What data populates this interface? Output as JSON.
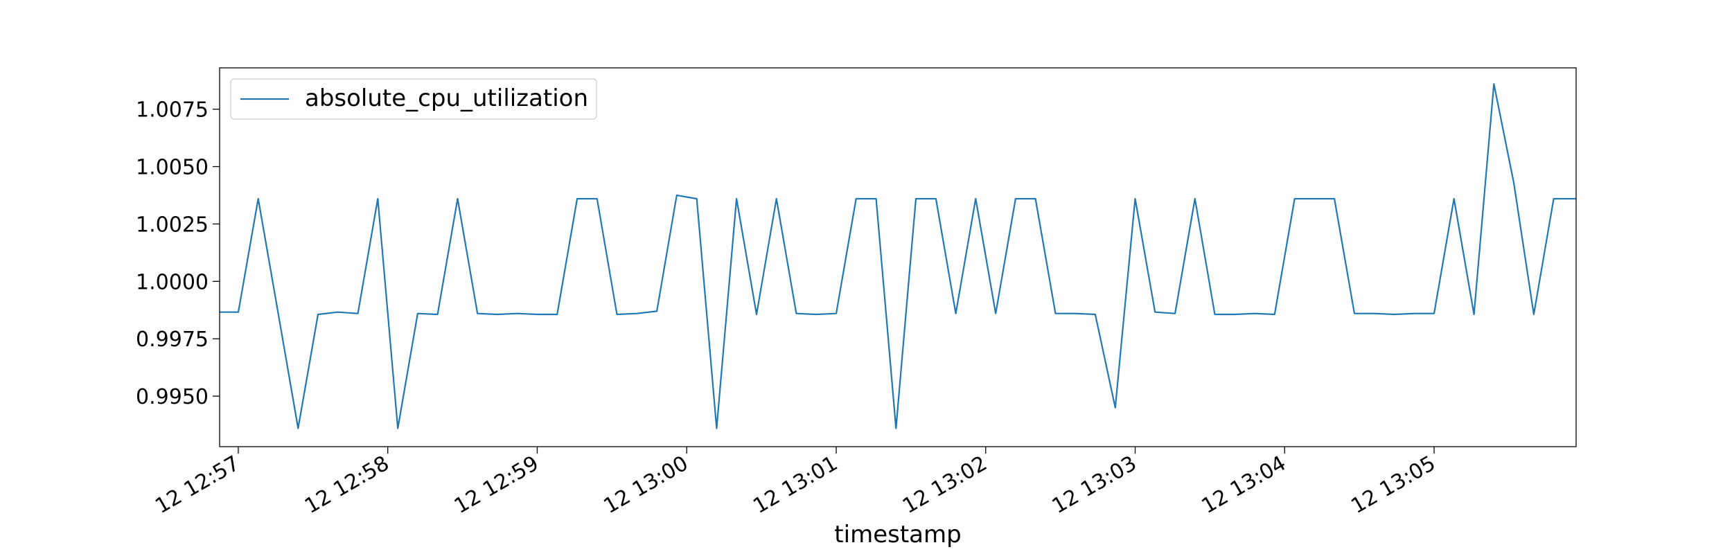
{
  "chart_data": {
    "type": "line",
    "title": "",
    "xlabel": "timestamp",
    "ylabel": "",
    "grid": false,
    "legend_position": "upper-left",
    "x_tick_labels": [
      "12 12:57",
      "12 12:58",
      "12 12:59",
      "12 13:00",
      "12 13:01",
      "12 13:02",
      "12 13:03",
      "12 13:04",
      "12 13:05"
    ],
    "x_tick_minutes": [
      0,
      1,
      2,
      3,
      4,
      5,
      6,
      7,
      8
    ],
    "y_ticks": [
      0.995,
      0.9975,
      1.0,
      1.0025,
      1.005,
      1.0075
    ],
    "y_tick_labels": [
      "0.9950",
      "0.9975",
      "1.0000",
      "1.0025",
      "1.0050",
      "1.0075"
    ],
    "xlim": [
      -0.125,
      8.95
    ],
    "ylim": [
      0.9928,
      1.0093
    ],
    "series": [
      {
        "name": "absolute_cpu_utilization",
        "color": "#1f77b4",
        "x": [
          -0.125,
          0.0,
          0.133,
          0.267,
          0.4,
          0.533,
          0.667,
          0.8,
          0.933,
          1.067,
          1.2,
          1.333,
          1.467,
          1.6,
          1.733,
          1.867,
          2.0,
          2.133,
          2.267,
          2.4,
          2.533,
          2.667,
          2.8,
          2.933,
          3.067,
          3.2,
          3.333,
          3.467,
          3.6,
          3.733,
          3.867,
          4.0,
          4.133,
          4.267,
          4.4,
          4.533,
          4.667,
          4.8,
          4.933,
          5.067,
          5.2,
          5.333,
          5.467,
          5.6,
          5.733,
          5.867,
          6.0,
          6.133,
          6.267,
          6.4,
          6.533,
          6.667,
          6.8,
          6.933,
          7.067,
          7.2,
          7.333,
          7.467,
          7.6,
          7.733,
          7.867,
          8.0,
          8.133,
          8.267,
          8.4,
          8.533,
          8.667,
          8.8,
          8.95
        ],
        "y": [
          0.99866,
          0.99866,
          1.0036,
          0.9986,
          0.9936,
          0.99856,
          0.99866,
          0.9986,
          1.0036,
          0.9936,
          0.9986,
          0.99856,
          1.0036,
          0.9986,
          0.99856,
          0.9986,
          0.99856,
          0.99856,
          1.0036,
          1.0036,
          0.99856,
          0.9986,
          0.9987,
          1.00375,
          1.0036,
          0.9936,
          1.0036,
          0.99856,
          1.0036,
          0.9986,
          0.99856,
          0.9986,
          1.0036,
          1.0036,
          0.9936,
          1.0036,
          1.0036,
          0.9986,
          1.0036,
          0.9986,
          1.0036,
          1.0036,
          0.9986,
          0.9986,
          0.99856,
          0.9945,
          1.0036,
          0.99866,
          0.9986,
          1.0036,
          0.99856,
          0.99856,
          0.9986,
          0.99856,
          1.0036,
          1.0036,
          1.0036,
          0.9986,
          0.9986,
          0.99856,
          0.9986,
          0.9986,
          1.0036,
          0.99856,
          1.0086,
          1.0043,
          0.99856,
          1.0036,
          1.0036
        ]
      }
    ]
  }
}
